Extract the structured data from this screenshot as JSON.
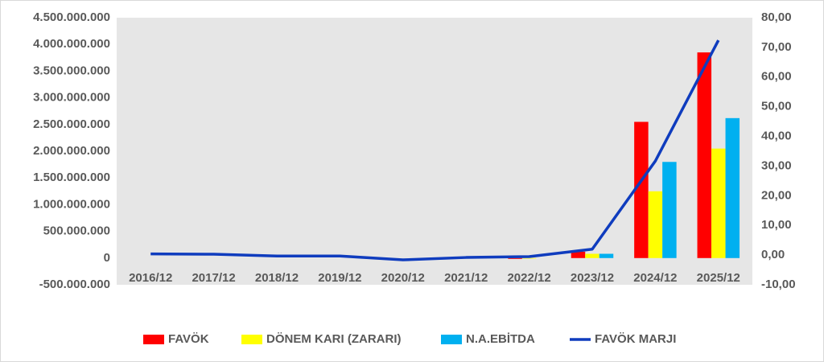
{
  "chart_data": {
    "type": "bar",
    "categories": [
      "2016/12",
      "2017/12",
      "2018/12",
      "2019/12",
      "2020/12",
      "2021/12",
      "2022/12",
      "2023/12",
      "2024/12",
      "2025/12"
    ],
    "series": [
      {
        "name": "FAVÖK",
        "color": "#ff0000",
        "values": [
          0,
          0,
          0,
          0,
          0,
          0,
          -15000000,
          120000000,
          2550000000,
          3850000000
        ]
      },
      {
        "name": "DÖNEM KARI (ZARARI)",
        "color": "#ffff00",
        "values": [
          0,
          0,
          0,
          0,
          0,
          0,
          -10000000,
          80000000,
          1250000000,
          2050000000
        ]
      },
      {
        "name": "N.A.EBİTDA",
        "color": "#00b0f0",
        "values": [
          0,
          0,
          0,
          0,
          0,
          0,
          0,
          80000000,
          1800000000,
          2620000000
        ]
      },
      {
        "name": "FAVÖK MARJI",
        "color": "#0f3cbe",
        "type": "line",
        "axis": "y2",
        "values": [
          0.4,
          0.3,
          -0.3,
          -0.3,
          -1.6,
          -0.8,
          -0.5,
          2.0,
          31.7,
          72.4
        ]
      }
    ],
    "ylim": [
      -500000000,
      4500000000
    ],
    "yticks": [
      {
        "value": -500000000,
        "label": "-500.000.000"
      },
      0,
      {
        "value": 500000000,
        "label": "500.000.000"
      },
      {
        "value": 1000000000,
        "label": "1.000.000.000"
      },
      {
        "value": 1500000000,
        "label": "1.500.000.000"
      },
      {
        "value": 2000000000,
        "label": "2.000.000.000"
      },
      {
        "value": 2500000000,
        "label": "2.500.000.000"
      },
      {
        "value": 3000000000,
        "label": "3.000.000.000"
      },
      {
        "value": 3500000000,
        "label": "3.500.000.000"
      },
      {
        "value": 4000000000,
        "label": "4.000.000.000"
      },
      {
        "value": 4500000000,
        "label": "4.500.000.000"
      }
    ],
    "y2lim": [
      -10,
      80
    ],
    "y2ticks": [
      {
        "value": -10,
        "label": "-10,00"
      },
      {
        "value": 0,
        "label": "0,00"
      },
      {
        "value": 10,
        "label": "10,00"
      },
      {
        "value": 20,
        "label": "20,00"
      },
      {
        "value": 30,
        "label": "30,00"
      },
      {
        "value": 40,
        "label": "40,00"
      },
      {
        "value": 50,
        "label": "50,00"
      },
      {
        "value": 60,
        "label": "60,00"
      },
      {
        "value": 70,
        "label": "70,00"
      },
      {
        "value": 80,
        "label": "80,00"
      }
    ],
    "grid": false,
    "legend": "bottom"
  }
}
